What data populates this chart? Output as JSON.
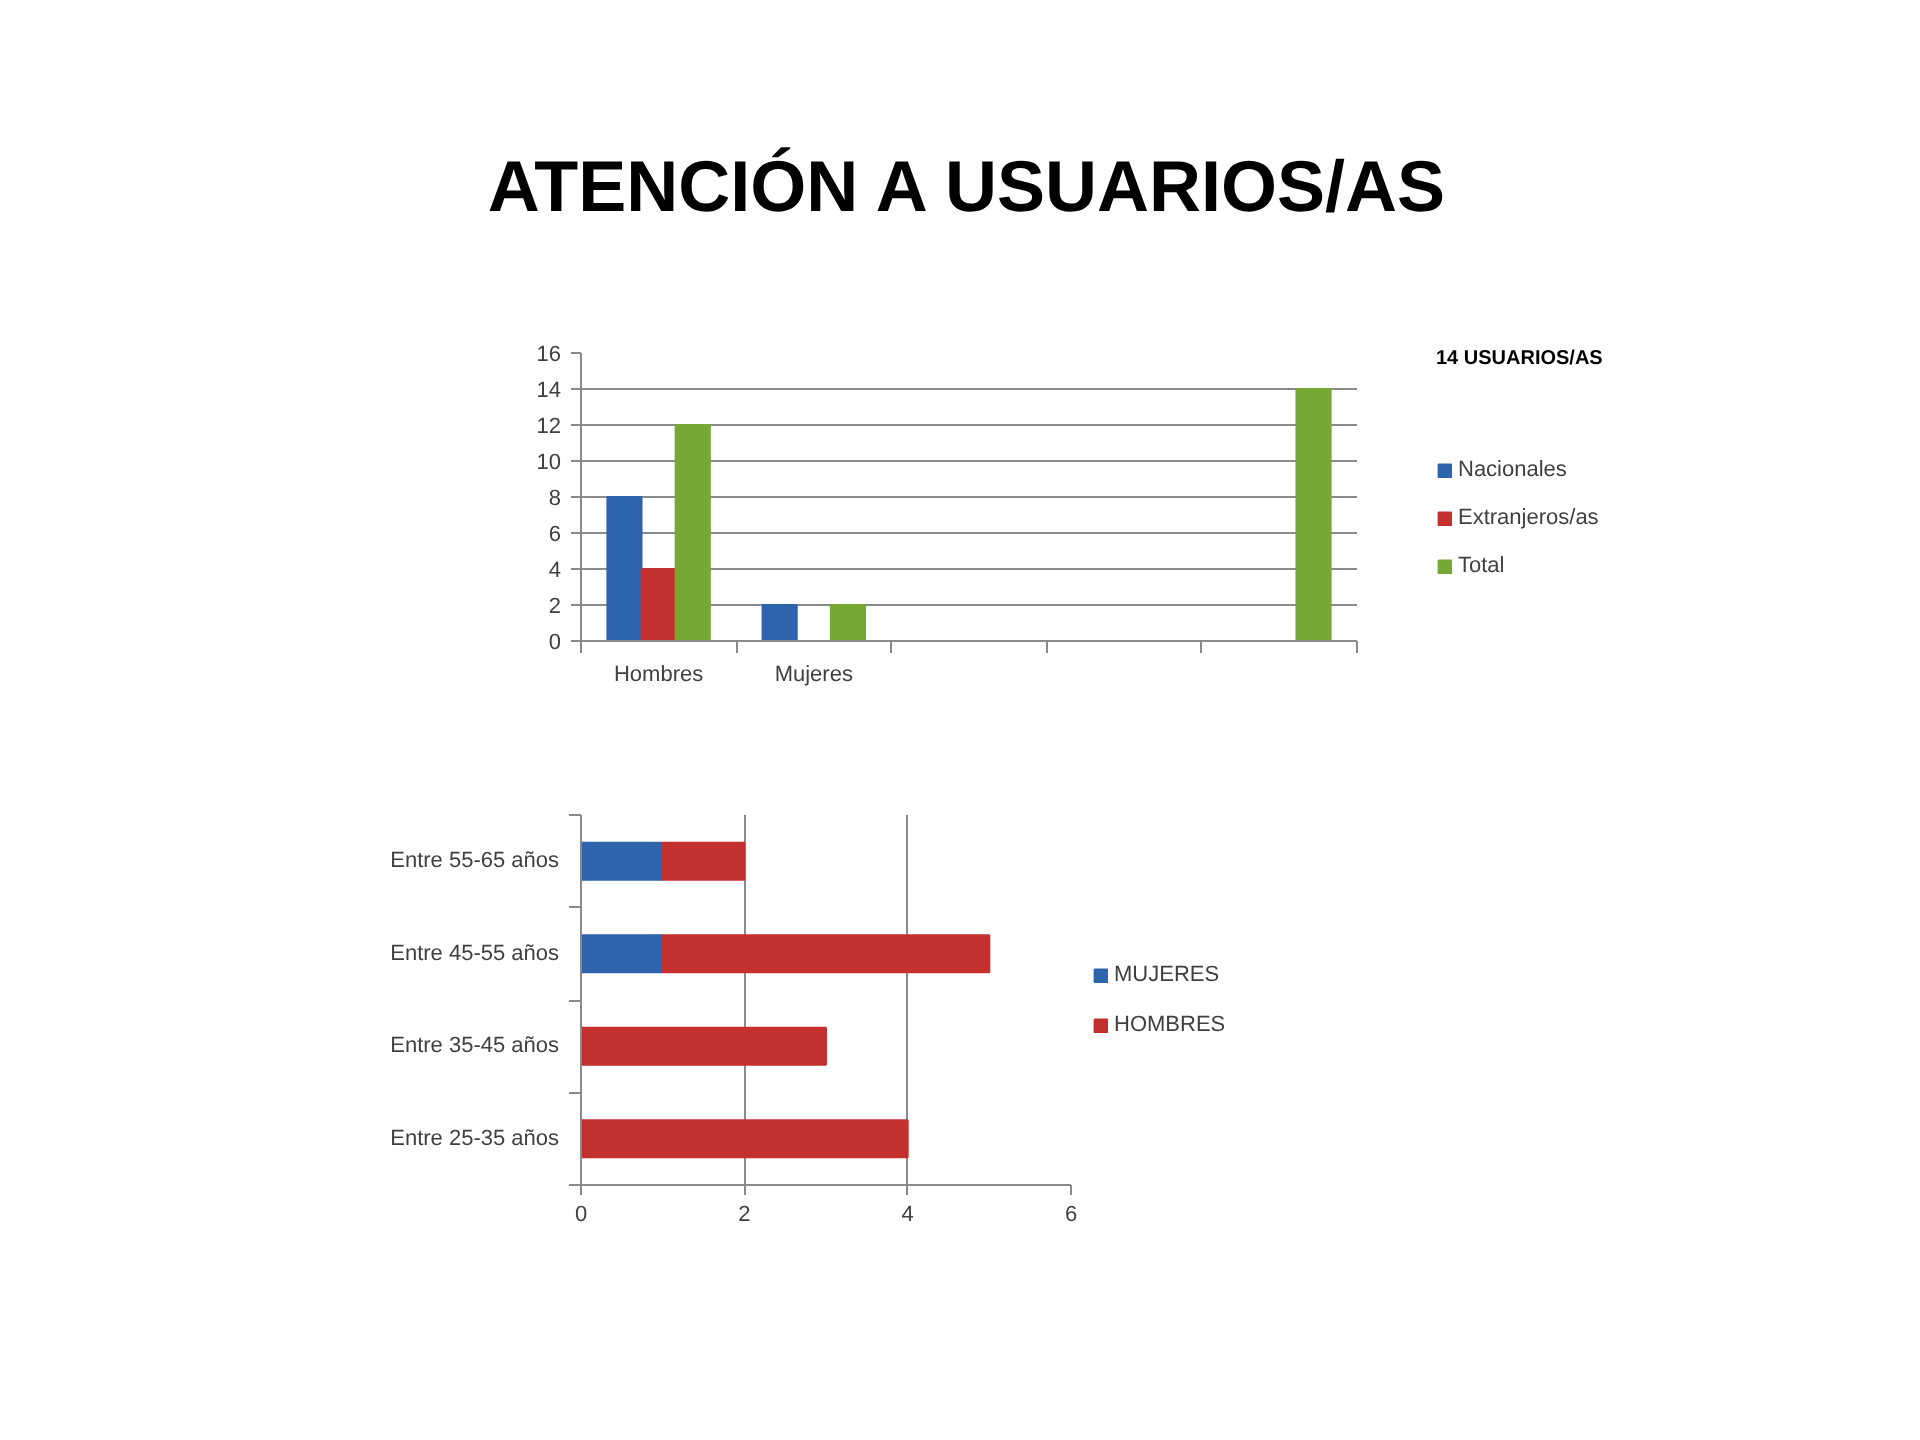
{
  "chart_data": [
    {
      "type": "bar",
      "title": "ATENCIÓN A USUARIOS/AS",
      "legend_title": "14 USUARIOS/AS",
      "categories": [
        "Hombres",
        "Mujeres",
        null,
        null,
        null
      ],
      "series": [
        {
          "name": "Nacionales",
          "color": "#2e64ac",
          "values": [
            8,
            2,
            null,
            null,
            null
          ]
        },
        {
          "name": "Extranjeros/as",
          "color": "#c3312f",
          "values": [
            4,
            null,
            null,
            null,
            null
          ]
        },
        {
          "name": "Total",
          "color": "#77a836",
          "values": [
            12,
            2,
            null,
            null,
            14
          ]
        }
      ],
      "ylim": [
        0,
        16
      ],
      "yticks": [
        0,
        2,
        4,
        6,
        8,
        10,
        12,
        14,
        16
      ],
      "grid": "y",
      "legend": "right"
    },
    {
      "type": "bar",
      "orientation": "horizontal",
      "stacked": true,
      "categories": [
        "Entre 55-65 años",
        "Entre 45-55 años",
        "Entre 35-45 años",
        "Entre 25-35 años"
      ],
      "series": [
        {
          "name": "MUJERES",
          "color": "#2e64ac",
          "values": [
            1,
            1,
            null,
            null
          ]
        },
        {
          "name": "HOMBRES",
          "color": "#c3312f",
          "values": [
            1,
            4,
            3,
            4
          ]
        }
      ],
      "xlim": [
        0,
        6
      ],
      "xticks": [
        0,
        2,
        4,
        6
      ],
      "grid": "x",
      "legend": "right"
    }
  ]
}
